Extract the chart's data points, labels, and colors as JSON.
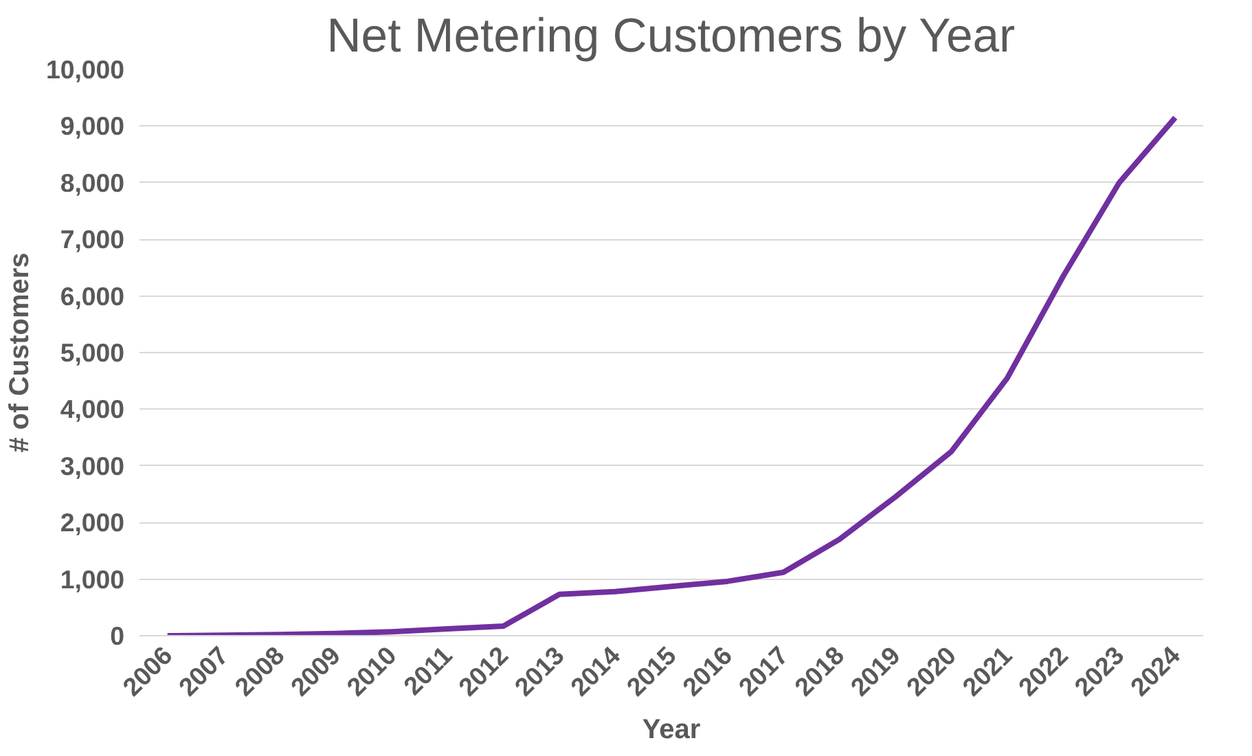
{
  "chart_data": {
    "type": "line",
    "title": "Net Metering Customers by Year",
    "xlabel": "Year",
    "ylabel": "# of Customers",
    "categories": [
      "2006",
      "2007",
      "2008",
      "2009",
      "2010",
      "2011",
      "2012",
      "2013",
      "2014",
      "2015",
      "2016",
      "2017",
      "2018",
      "2019",
      "2020",
      "2021",
      "2022",
      "2023",
      "2024"
    ],
    "series": [
      {
        "color": "#7030a0",
        "values": [
          0,
          10,
          20,
          40,
          70,
          120,
          170,
          730,
          780,
          870,
          960,
          1120,
          1700,
          2450,
          3250,
          4550,
          6350,
          8000,
          9150
        ]
      }
    ],
    "ylim": [
      0,
      10000
    ],
    "yticks": [
      {
        "value": 0,
        "label": "0"
      },
      {
        "value": 1000,
        "label": "1,000"
      },
      {
        "value": 2000,
        "label": "2,000"
      },
      {
        "value": 3000,
        "label": "3,000"
      },
      {
        "value": 4000,
        "label": "4,000"
      },
      {
        "value": 5000,
        "label": "5,000"
      },
      {
        "value": 6000,
        "label": "6,000"
      },
      {
        "value": 7000,
        "label": "7,000"
      },
      {
        "value": 8000,
        "label": "8,000"
      },
      {
        "value": 9000,
        "label": "9,000"
      },
      {
        "value": 10000,
        "label": "10,000"
      }
    ],
    "grid": "y",
    "marker": "none",
    "line_style": "solid"
  }
}
